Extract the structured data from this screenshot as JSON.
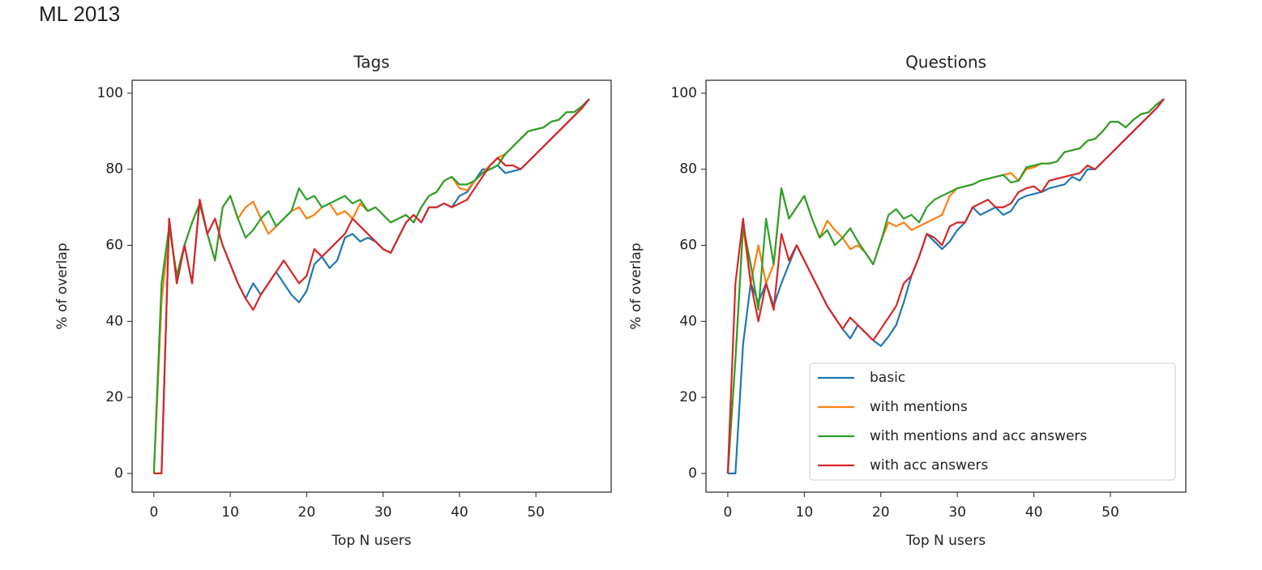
{
  "heading": "ML 2013",
  "chart_data": [
    {
      "type": "line",
      "title": "Tags",
      "xlabel": "Top N users",
      "ylabel": "% of overlap",
      "x": [
        0,
        1,
        2,
        3,
        4,
        5,
        6,
        7,
        8,
        9,
        10,
        11,
        12,
        13,
        14,
        15,
        16,
        17,
        18,
        19,
        20,
        21,
        22,
        23,
        24,
        25,
        26,
        27,
        28,
        29,
        30,
        31,
        32,
        33,
        34,
        35,
        36,
        37,
        38,
        39,
        40,
        41,
        42,
        43,
        44,
        45,
        46,
        47,
        48,
        49,
        50,
        51,
        52,
        53,
        54,
        55,
        56,
        57
      ],
      "xlim": [
        -2.85,
        59.85
      ],
      "xticks": [
        0,
        10,
        20,
        30,
        40,
        50
      ],
      "ylim": [
        -4.93,
        103.4
      ],
      "yticks": [
        0,
        20,
        40,
        60,
        80,
        100
      ],
      "series": [
        {
          "color": "#1f77b4",
          "values": [
            0,
            0,
            67,
            50,
            60,
            50,
            72,
            63,
            67,
            60,
            55,
            50,
            46,
            50,
            47,
            50,
            53,
            50,
            47,
            45,
            48,
            55,
            57,
            54,
            56,
            62,
            63,
            61,
            62,
            61,
            59,
            58,
            62,
            66,
            68,
            66,
            70,
            70,
            71,
            70,
            73,
            74,
            77,
            80,
            80,
            81,
            79,
            79.5,
            80,
            82,
            84,
            86,
            88,
            90,
            92,
            94,
            96,
            98.5
          ]
        },
        {
          "color": "#ff7f0e",
          "values": [
            0,
            45,
            65,
            52,
            60,
            66,
            71,
            63,
            56,
            70,
            73,
            67,
            70,
            71.5,
            67,
            63,
            65,
            67,
            69,
            70,
            67,
            68,
            70,
            71,
            68,
            69,
            67,
            71,
            69,
            70,
            68,
            66,
            67,
            68,
            66,
            70,
            73,
            74,
            77,
            78,
            75,
            74.5,
            77,
            79,
            81,
            83,
            84,
            86,
            88,
            90,
            90.5,
            91,
            92.5,
            93,
            95,
            95,
            96.5,
            98.5
          ]
        },
        {
          "color": "#2ca02c",
          "values": [
            0,
            50,
            65,
            52,
            60,
            66,
            71,
            63,
            56,
            70,
            73,
            67,
            62,
            64,
            67,
            69,
            65,
            67,
            69,
            75,
            72,
            73,
            70,
            71,
            72,
            73,
            71,
            72,
            69,
            70,
            68,
            66,
            67,
            68,
            66,
            70,
            73,
            74,
            77,
            78,
            76,
            76,
            77,
            79,
            80,
            81,
            84,
            86,
            88,
            90,
            90.5,
            91,
            92.5,
            93,
            95,
            95,
            96.5,
            98.5
          ]
        },
        {
          "color": "#d62728",
          "values": [
            0,
            0,
            67,
            50,
            60,
            50,
            72,
            63,
            67,
            60,
            55,
            50,
            46,
            43,
            47,
            50,
            53,
            56,
            53,
            50,
            52,
            59,
            57,
            59,
            61,
            63,
            67,
            65,
            63,
            61,
            59,
            58,
            62,
            66,
            68,
            66,
            70,
            70,
            71,
            70,
            71,
            72,
            75,
            78,
            81,
            83,
            81,
            81,
            80,
            82,
            84,
            86,
            88,
            90,
            92,
            94,
            96,
            98.5
          ]
        }
      ]
    },
    {
      "type": "line",
      "title": "Questions",
      "xlabel": "Top N users",
      "ylabel": "% of overlap",
      "x": [
        0,
        1,
        2,
        3,
        4,
        5,
        6,
        7,
        8,
        9,
        10,
        11,
        12,
        13,
        14,
        15,
        16,
        17,
        18,
        19,
        20,
        21,
        22,
        23,
        24,
        25,
        26,
        27,
        28,
        29,
        30,
        31,
        32,
        33,
        34,
        35,
        36,
        37,
        38,
        39,
        40,
        41,
        42,
        43,
        44,
        45,
        46,
        47,
        48,
        49,
        50,
        51,
        52,
        53,
        54,
        55,
        56,
        57
      ],
      "xlim": [
        -2.85,
        59.85
      ],
      "xticks": [
        0,
        10,
        20,
        30,
        40,
        50
      ],
      "ylim": [
        -4.93,
        103.4
      ],
      "yticks": [
        0,
        20,
        40,
        60,
        80,
        100
      ],
      "legend": "lower right",
      "series": [
        {
          "name": "basic",
          "color": "#1f77b4",
          "values": [
            0,
            0,
            34,
            50,
            45,
            50,
            44,
            50,
            55,
            60,
            56,
            52,
            48,
            44,
            41,
            38,
            35.5,
            39,
            37,
            35,
            33.5,
            36,
            39,
            45,
            52,
            57,
            63,
            61,
            59,
            61,
            64,
            66,
            70,
            68,
            69,
            70,
            68,
            69,
            72,
            73,
            73.5,
            74,
            75,
            75.5,
            76,
            78,
            77,
            80,
            80,
            82,
            84,
            86,
            88,
            90,
            92,
            94,
            96,
            98.5
          ]
        },
        {
          "name": "with mentions",
          "color": "#ff7f0e",
          "values": [
            0,
            30,
            65,
            50,
            60,
            50,
            55,
            75,
            67,
            70,
            73,
            67,
            62,
            66.5,
            64,
            62,
            59,
            60,
            58,
            55,
            61,
            66,
            65,
            66,
            64,
            65,
            66,
            67,
            68,
            73,
            75,
            75.5,
            76,
            77,
            77.5,
            78,
            78.5,
            79,
            77,
            80,
            80.5,
            81.5,
            81.5,
            82,
            84.5,
            85,
            85.5,
            87.5,
            88,
            90,
            92.5,
            92.5,
            91,
            93,
            94.5,
            95,
            97,
            98.5
          ]
        },
        {
          "name": "with mentions and acc answers",
          "color": "#2ca02c",
          "values": [
            0,
            30,
            65,
            55,
            43,
            67,
            55,
            75,
            67,
            70,
            73,
            67,
            62,
            64,
            60,
            62,
            64.5,
            61,
            58,
            55,
            61,
            68,
            69.5,
            67,
            68,
            66,
            70,
            72,
            73,
            74,
            75,
            75.5,
            76,
            77,
            77.5,
            78,
            78.5,
            76.5,
            77,
            80.5,
            81,
            81.5,
            81.5,
            82,
            84.5,
            85,
            85.5,
            87.5,
            88,
            90,
            92.5,
            92.5,
            91,
            93,
            94.5,
            95,
            97,
            98.5
          ]
        },
        {
          "name": "with acc answers",
          "color": "#d62728",
          "values": [
            0,
            50,
            67,
            50,
            40,
            50,
            43,
            63,
            56,
            60,
            56,
            52,
            48,
            44,
            41,
            38,
            41,
            39,
            37,
            35,
            38,
            41,
            44,
            50,
            52,
            57,
            63,
            62,
            60,
            65,
            66,
            66,
            70,
            71,
            72,
            70,
            70,
            71,
            74,
            75,
            75.5,
            74,
            77,
            77.5,
            78,
            78.5,
            79,
            81,
            80,
            82,
            84,
            86,
            88,
            90,
            92,
            94,
            96,
            98.5
          ]
        }
      ]
    }
  ]
}
